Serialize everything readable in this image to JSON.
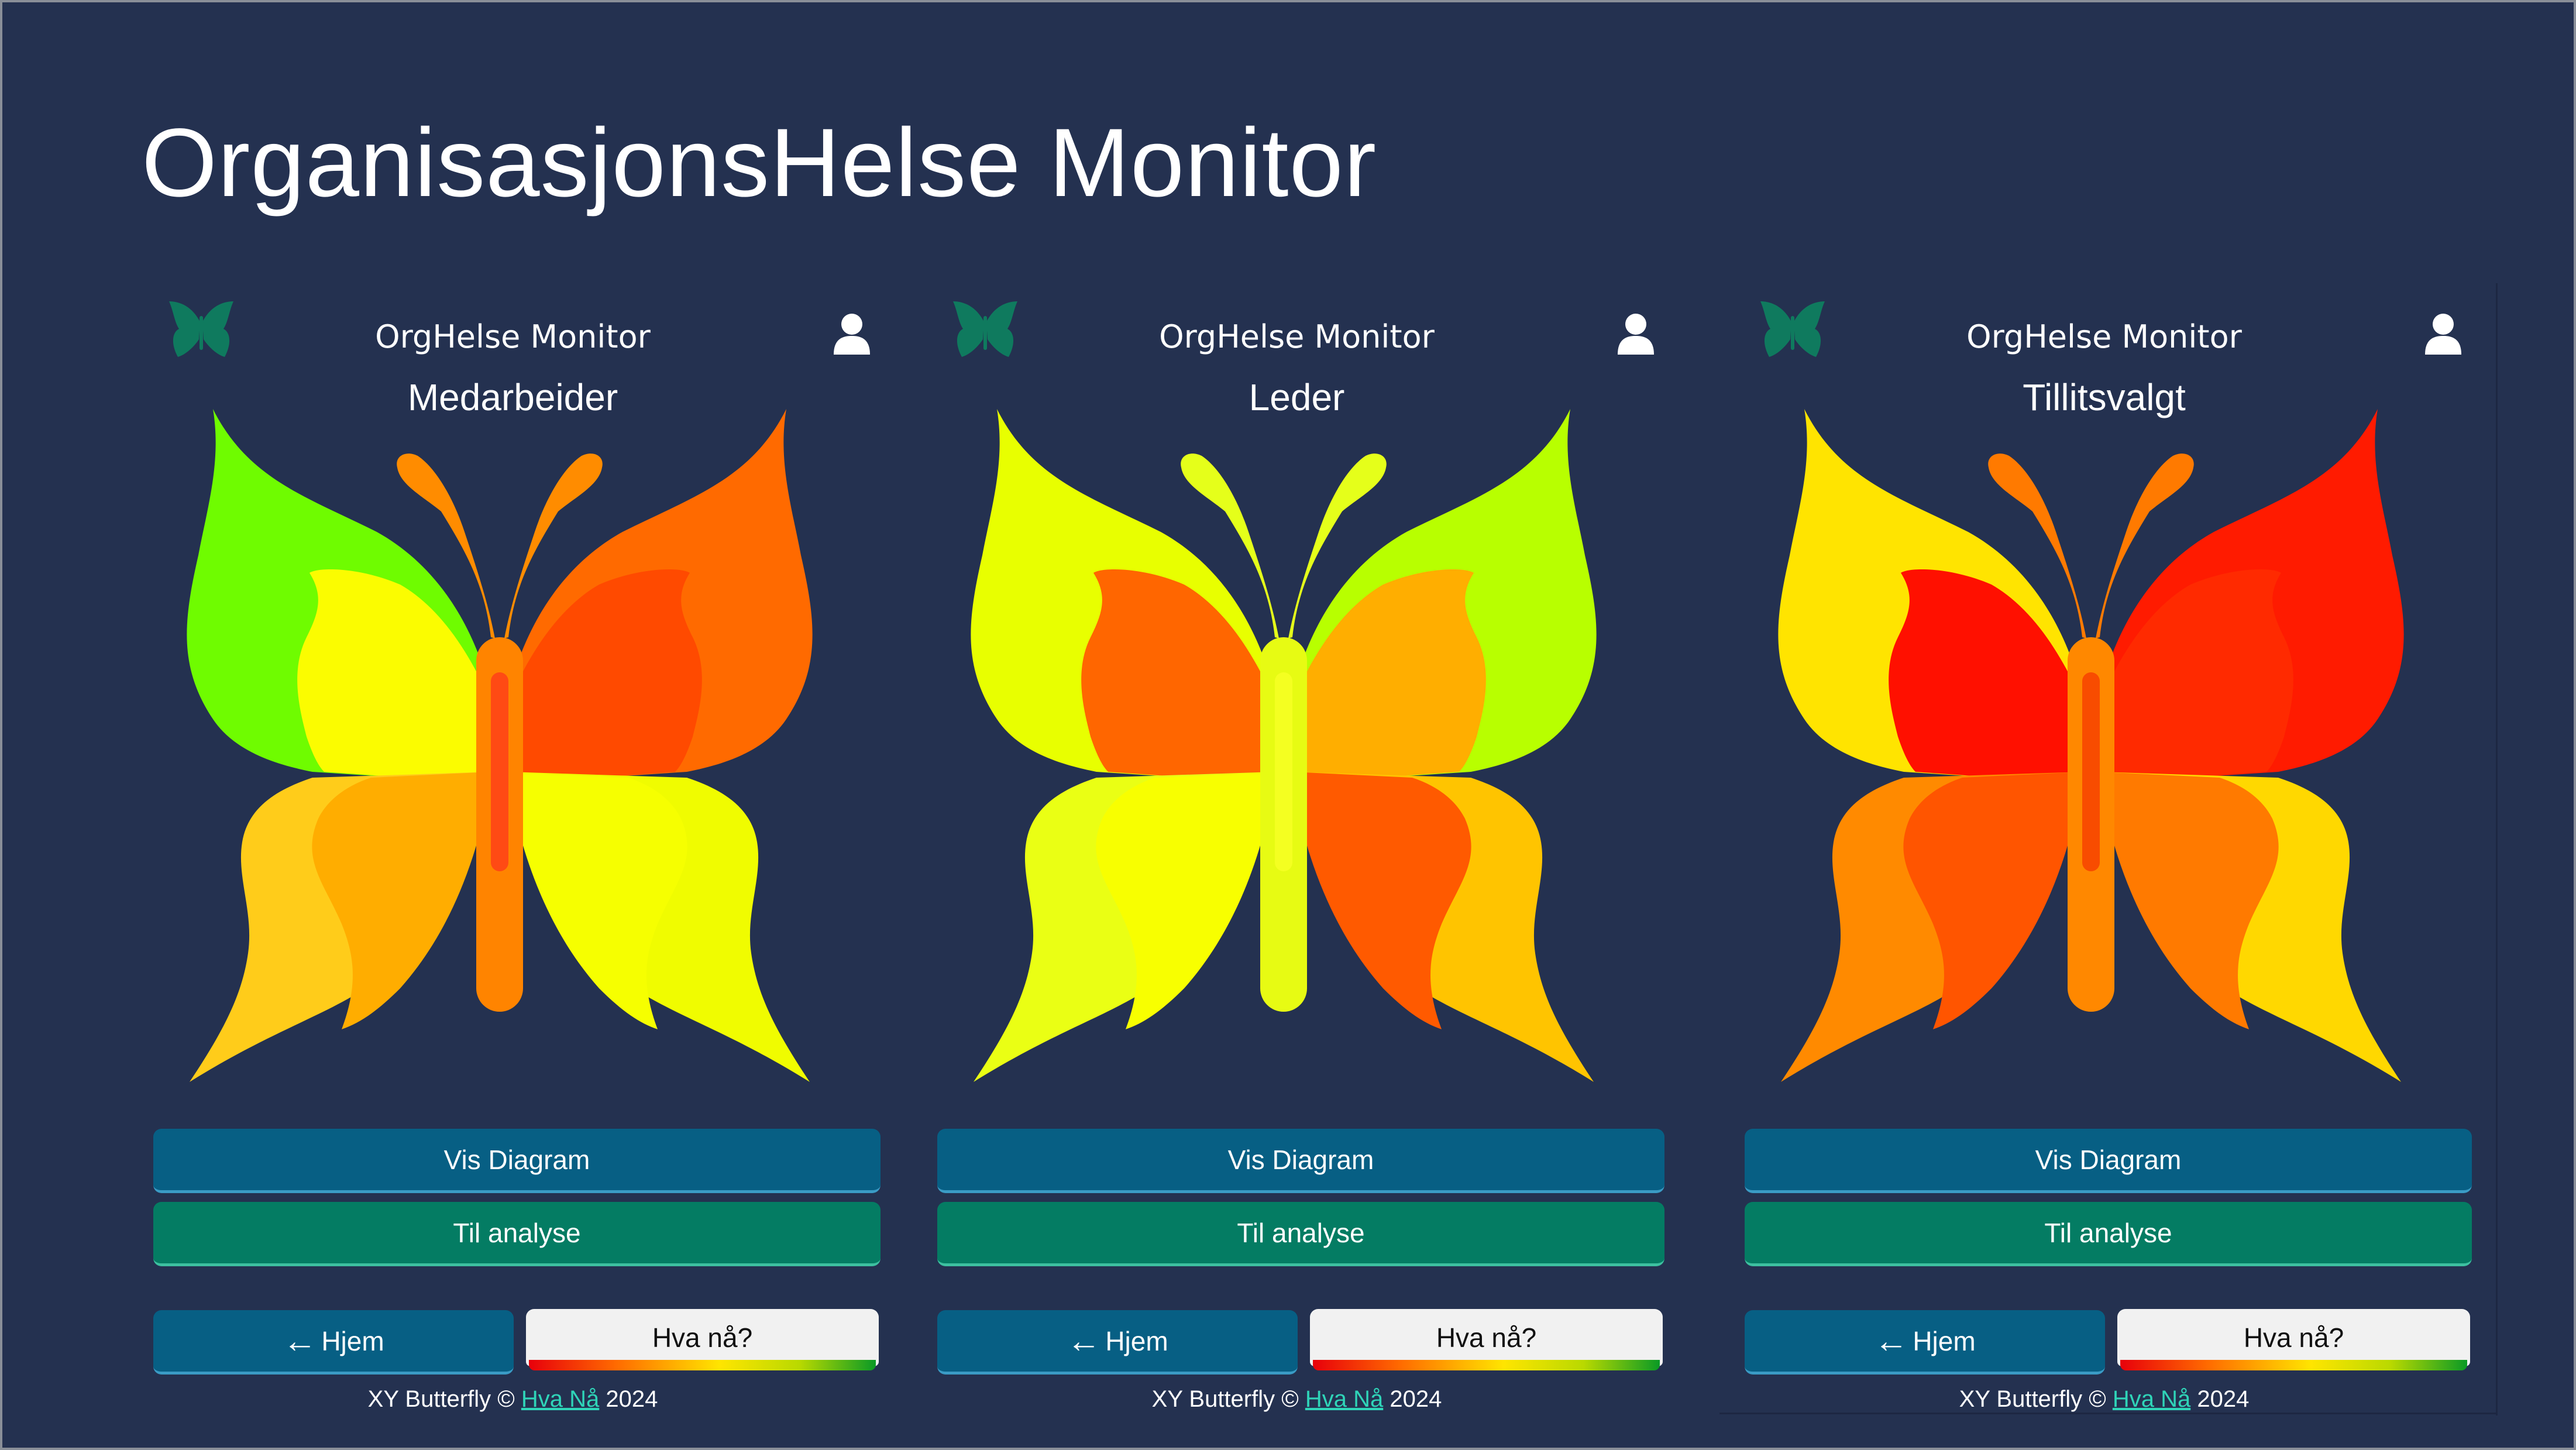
{
  "page_title": "OrganisasjonsHelse Monitor",
  "app_title": "OrgHelse Monitor",
  "panels": [
    {
      "role": "Medarbeider",
      "colors": {
        "ul": "#6ffc00",
        "ur": "#ff6a00",
        "ul_in": "#fbfc00",
        "ur_in": "#ff4a00",
        "ll": "#ffcc1a",
        "ll_in": "#ffad00",
        "lr": "#f0fc00",
        "lr_in": "#f6ff00",
        "body": "#ff8400",
        "body_in": "#ff4a14",
        "antenna": "#ff8c00"
      }
    },
    {
      "role": "Leder",
      "colors": {
        "ul": "#e8ff00",
        "ur": "#b8ff00",
        "ul_in": "#ff6600",
        "ur_in": "#ffae00",
        "ll": "#eaff14",
        "ll_in": "#f8ff00",
        "lr": "#ffc400",
        "lr_in": "#ff5a00",
        "body": "#e7fb13",
        "body_in": "#f4ff21",
        "antenna": "#e5ff1a"
      }
    },
    {
      "role": "Tillitsvalgt",
      "colors": {
        "ul": "#ffe400",
        "ur": "#ff1b00",
        "ul_in": "#ff1000",
        "ur_in": "#ff2a00",
        "ll": "#ff8a00",
        "ll_in": "#ff5500",
        "lr": "#ffd800",
        "lr_in": "#ff7a00",
        "body": "#ff8800",
        "body_in": "#f84c00",
        "antenna": "#ff7a00"
      }
    }
  ],
  "buttons": {
    "vis_diagram": "Vis Diagram",
    "til_analyse": "Til analyse",
    "hjem": "Hjem",
    "hva_na": "Hva nå?"
  },
  "footer": {
    "prefix": "XY Butterfly ©",
    "link": "Hva Nå",
    "year": "2024"
  },
  "icons": {
    "logo": "butterfly-logo-icon",
    "user": "user-icon",
    "arrow": "arrow-left-icon"
  },
  "accent_colors": {
    "background": "#243150",
    "primary_button": "#075f84",
    "secondary_button": "#047c63",
    "logo": "#0f7a5e",
    "link": "#2fd4b8"
  }
}
